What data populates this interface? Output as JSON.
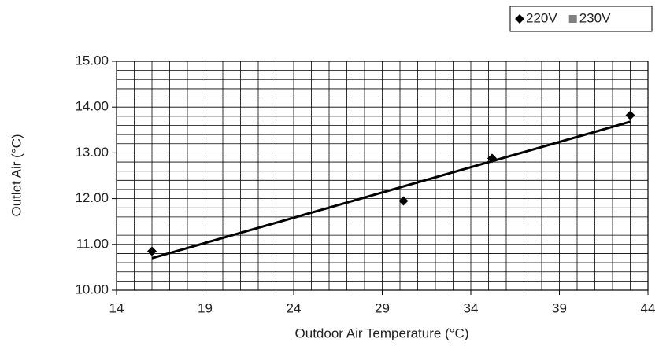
{
  "chart_data": {
    "type": "scatter",
    "x_label": "Outdoor Air Temperature (°C)",
    "y_label": "Outlet Air (°C)",
    "series": [
      {
        "name": "220V",
        "color": "#000000",
        "marker": "diamond",
        "x": [
          16,
          30.2,
          35.2,
          43
        ],
        "values": [
          10.85,
          11.95,
          12.88,
          13.82
        ]
      },
      {
        "name": "230V",
        "color": "#808080",
        "marker": "square",
        "x": [],
        "values": []
      }
    ],
    "trendline": {
      "color": "#000000",
      "x": [
        16,
        43
      ],
      "values": [
        10.7,
        13.68
      ]
    },
    "xlim": [
      14,
      44
    ],
    "xticks": [
      14,
      19,
      24,
      29,
      34,
      39,
      44
    ],
    "ylim": [
      10,
      15
    ],
    "yticks": [
      {
        "value": 10,
        "label": "10.00"
      },
      {
        "value": 11,
        "label": "11.00"
      },
      {
        "value": 12,
        "label": "12.00"
      },
      {
        "value": 13,
        "label": "13.00"
      },
      {
        "value": 14,
        "label": "14.00"
      },
      {
        "value": 15,
        "label": "15.00"
      }
    ],
    "grid": true,
    "grid_step": {
      "x": 1,
      "y": 0.2
    },
    "legend": "top-right"
  }
}
